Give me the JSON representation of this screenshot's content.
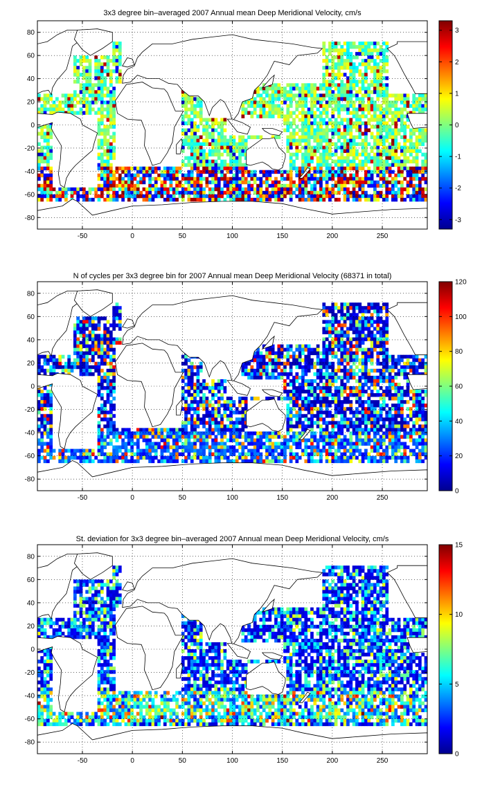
{
  "chart_data": [
    {
      "type": "heatmap",
      "title": "3x3 degree bin–averaged 2007 Annual mean Deep Meridional Velocity, cm/s",
      "xlabel": "",
      "ylabel": "",
      "xlim": [
        -95,
        295
      ],
      "ylim": [
        -90,
        90
      ],
      "xticks": [
        -50,
        0,
        50,
        100,
        150,
        200,
        250
      ],
      "yticks": [
        80,
        60,
        40,
        20,
        0,
        -20,
        -40,
        -60,
        -80
      ],
      "grid": true,
      "colorbar": {
        "range": [
          -3.3,
          3.3
        ],
        "ticks": [
          -3,
          -2,
          -1,
          0,
          1,
          2,
          3
        ]
      },
      "bin_size_deg": 3,
      "field": "meridional_velocity"
    },
    {
      "type": "heatmap",
      "title": "N of cycles per 3x3 degree bin for 2007 Annual mean Deep Meridional Velocity (68371 in total)",
      "xlabel": "",
      "ylabel": "",
      "xlim": [
        -95,
        295
      ],
      "ylim": [
        -90,
        90
      ],
      "xticks": [
        -50,
        0,
        50,
        100,
        150,
        200,
        250
      ],
      "yticks": [
        80,
        60,
        40,
        20,
        0,
        -20,
        -40,
        -60,
        -80
      ],
      "grid": true,
      "colorbar": {
        "range": [
          0,
          120
        ],
        "ticks": [
          0,
          20,
          40,
          60,
          80,
          100,
          120
        ]
      },
      "bin_size_deg": 3,
      "field": "cycle_count"
    },
    {
      "type": "heatmap",
      "title": "St. deviation for 3x3 degree bin–averaged 2007 Annual mean Deep Meridional Velocity, cm/s",
      "xlabel": "",
      "ylabel": "",
      "xlim": [
        -95,
        295
      ],
      "ylim": [
        -90,
        90
      ],
      "xticks": [
        -50,
        0,
        50,
        100,
        150,
        200,
        250
      ],
      "yticks": [
        80,
        60,
        40,
        20,
        0,
        -20,
        -40,
        -60,
        -80
      ],
      "grid": true,
      "colorbar": {
        "range": [
          0,
          15
        ],
        "ticks": [
          0,
          5,
          10,
          15
        ]
      },
      "bin_size_deg": 3,
      "field": "std_deviation"
    }
  ],
  "colors": {
    "background": "#ffffff",
    "axis": "#000000",
    "land": "#ffffff",
    "coast": "#000000"
  },
  "colormap": "jet"
}
